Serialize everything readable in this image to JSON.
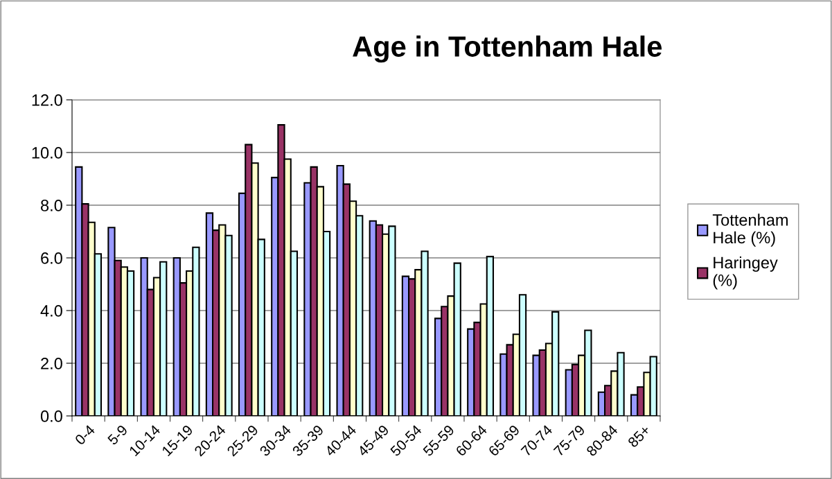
{
  "chart_data": {
    "type": "bar",
    "title": "Age in Tottenham Hale",
    "categories": [
      "0-4",
      "5-9",
      "10-14",
      "15-19",
      "20-24",
      "25-29",
      "30-34",
      "35-39",
      "40-44",
      "45-49",
      "50-54",
      "55-59",
      "60-64",
      "65-69",
      "70-74",
      "75-79",
      "80-84",
      "85+"
    ],
    "series": [
      {
        "name": "Tottenham Hale (%)",
        "color": "#9999ff",
        "values": [
          9.45,
          7.15,
          6.0,
          6.0,
          7.7,
          8.45,
          9.05,
          8.85,
          9.5,
          7.4,
          5.3,
          3.7,
          3.3,
          2.35,
          2.3,
          1.75,
          0.9,
          0.8
        ]
      },
      {
        "name": "Haringey (%)",
        "color": "#993366",
        "values": [
          8.05,
          5.9,
          4.8,
          5.05,
          7.05,
          10.3,
          11.05,
          9.45,
          8.8,
          7.25,
          5.2,
          4.15,
          3.55,
          2.7,
          2.5,
          1.95,
          1.15,
          1.1
        ]
      },
      {
        "color": "#ffffcc",
        "values": [
          7.35,
          5.65,
          5.25,
          5.5,
          7.25,
          9.6,
          9.75,
          8.7,
          8.15,
          6.9,
          5.55,
          4.55,
          4.25,
          3.1,
          2.75,
          2.3,
          1.7,
          1.65
        ]
      },
      {
        "color": "#ccffff",
        "values": [
          6.15,
          5.5,
          5.85,
          6.4,
          6.85,
          6.7,
          6.25,
          7.0,
          7.6,
          7.2,
          6.25,
          5.8,
          6.05,
          4.6,
          3.95,
          3.25,
          2.4,
          2.25
        ]
      }
    ],
    "ylim": [
      0,
      12
    ],
    "yticks": [
      {
        "value": 0,
        "label": "0.0"
      },
      {
        "value": 2,
        "label": "2.0"
      },
      {
        "value": 4,
        "label": "4.0"
      },
      {
        "value": 6,
        "label": "6.0"
      },
      {
        "value": 8,
        "label": "8.0"
      },
      {
        "value": 10,
        "label": "10.0"
      },
      {
        "value": 12,
        "label": "12.0"
      }
    ],
    "grid": "y",
    "legend": "right"
  }
}
